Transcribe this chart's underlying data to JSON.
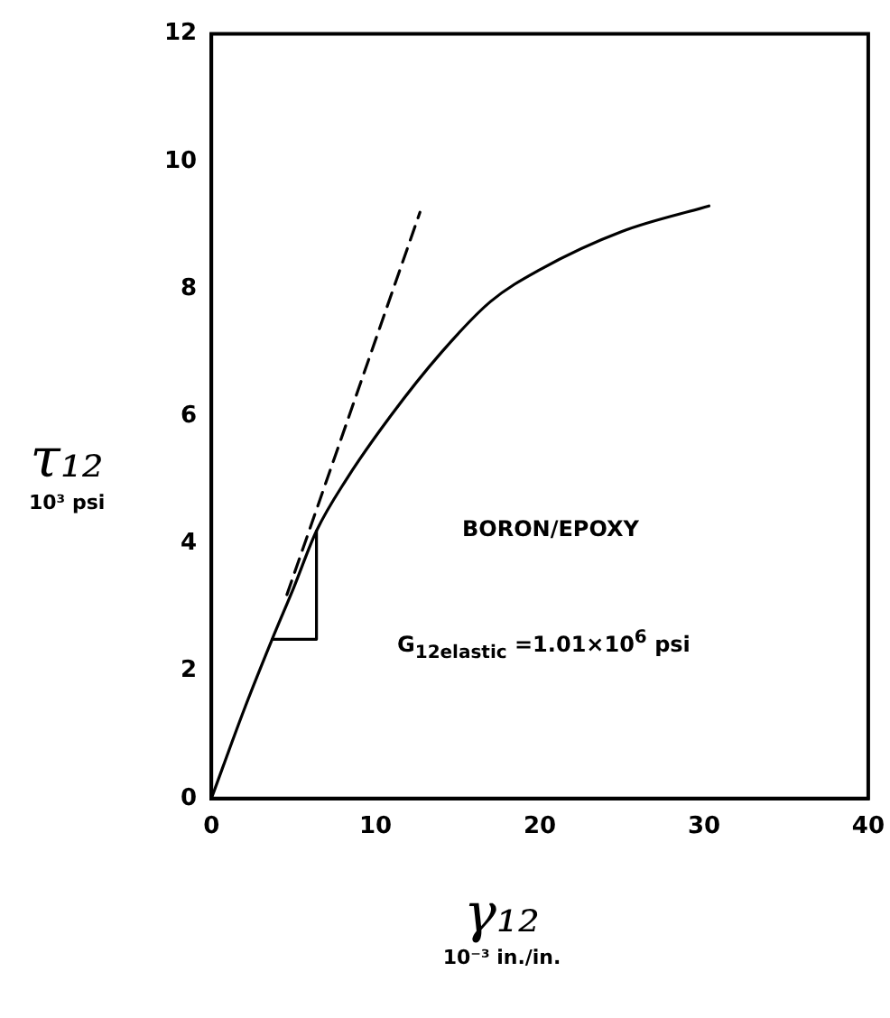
{
  "chart_data": {
    "type": "line",
    "xlabel": "γ₁₂\n10⁻³ in./in.",
    "ylabel": "τ₁₂\n10³ psi",
    "xlim": [
      0,
      40
    ],
    "xticks": [
      0,
      10,
      20,
      30,
      40
    ],
    "ylim": [
      0,
      12
    ],
    "yticks": [
      0,
      2,
      4,
      6,
      8,
      10,
      12
    ],
    "grid": false,
    "legend": false,
    "marker": "none",
    "series": [
      {
        "color": "#000000",
        "x": [
          0,
          2,
          3.7,
          5,
          6.4,
          8.2,
          10.9,
          14,
          17,
          20,
          25,
          30.3
        ],
        "values": [
          0,
          1.4,
          2.5,
          3.3,
          4.2,
          5,
          6,
          7,
          7.8,
          8.3,
          8.9,
          9.3
        ],
        "line_style": "solid"
      },
      {
        "color": "#000000",
        "x": [
          4.6,
          12.7
        ],
        "values": [
          3.2,
          9.2
        ],
        "line_style": "dashed"
      },
      {
        "color": "#000000",
        "x": [
          3.7,
          6.4,
          6.4
        ],
        "values": [
          2.5,
          2.5,
          4.2
        ],
        "line_style": "solid"
      }
    ],
    "annotations": [
      "BORON/EPOXY",
      "G$_{12elastic}$ =1.01×10$^{6}$ psi"
    ]
  }
}
